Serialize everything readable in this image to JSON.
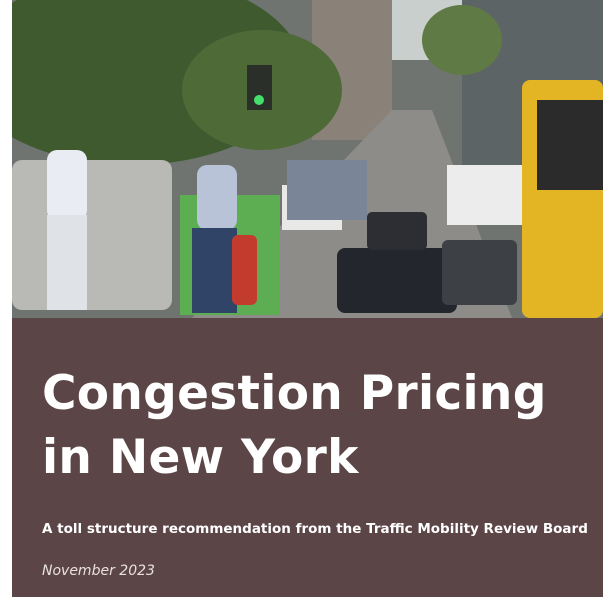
{
  "cover": {
    "title": [
      "Congestion Pricing",
      "in New York"
    ],
    "subtitle": "A toll structure recommendation from the Traffic Mobility Review Board",
    "date": "November 2023"
  }
}
